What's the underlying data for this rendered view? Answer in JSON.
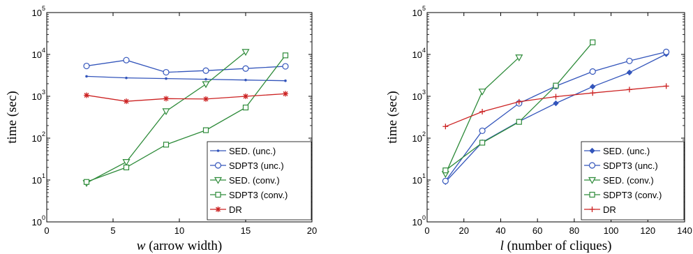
{
  "chart_data": [
    {
      "type": "line",
      "xlabel_var": "w",
      "xlabel_rest": " (arrow width)",
      "ylabel": "time (sec)",
      "xlim": [
        0,
        20
      ],
      "ylim_log10": [
        0,
        5
      ],
      "yscale": "log",
      "xticks": [
        "0",
        "5",
        "10",
        "15",
        "20"
      ],
      "legend_position": "bottom-right",
      "series": [
        {
          "name": "SED. (unc.)",
          "color": "#3355bb",
          "marker": "dot",
          "x": [
            3,
            6,
            9,
            12,
            15,
            18
          ],
          "y": [
            3000,
            2750,
            2650,
            2550,
            2450,
            2350
          ]
        },
        {
          "name": "SDPT3 (unc.)",
          "color": "#3355bb",
          "marker": "circle",
          "x": [
            3,
            6,
            9,
            12,
            15,
            18
          ],
          "y": [
            5300,
            7300,
            3750,
            4100,
            4600,
            5200
          ]
        },
        {
          "name": "SED. (conv.)",
          "color": "#2e8b3a",
          "marker": "triangle",
          "x": [
            3,
            6,
            9,
            12,
            15
          ],
          "y": [
            8.5,
            27,
            440,
            1950,
            11500
          ]
        },
        {
          "name": "SDPT3 (conv.)",
          "color": "#2e8b3a",
          "marker": "square",
          "x": [
            3,
            6,
            9,
            12,
            15,
            18
          ],
          "y": [
            9,
            20,
            70,
            155,
            540,
            9500
          ]
        },
        {
          "name": "DR",
          "color": "#cc2222",
          "marker": "star",
          "x": [
            3,
            6,
            9,
            12,
            15,
            18
          ],
          "y": [
            1060,
            760,
            880,
            860,
            1000,
            1150
          ]
        }
      ]
    },
    {
      "type": "line",
      "xlabel_var": "l",
      "xlabel_rest": " (number of cliques)",
      "ylabel": "time (sec)",
      "xlim": [
        0,
        140
      ],
      "ylim_log10": [
        0,
        5
      ],
      "yscale": "log",
      "xticks": [
        "0",
        "20",
        "40",
        "60",
        "80",
        "100",
        "120",
        "140"
      ],
      "legend_position": "bottom-right",
      "series": [
        {
          "name": "SED. (unc.)",
          "color": "#3355bb",
          "marker": "diamond",
          "x": [
            10,
            30,
            50,
            70,
            90,
            110,
            130
          ],
          "y": [
            9,
            80,
            250,
            680,
            1700,
            3700,
            10200
          ]
        },
        {
          "name": "SDPT3 (unc.)",
          "color": "#3355bb",
          "marker": "circle",
          "x": [
            10,
            30,
            50,
            70,
            90,
            110,
            130
          ],
          "y": [
            9.5,
            150,
            680,
            1750,
            3900,
            7000,
            11500
          ]
        },
        {
          "name": "SED. (conv.)",
          "color": "#2e8b3a",
          "marker": "triangle",
          "x": [
            10,
            30,
            50
          ],
          "y": [
            14,
            1300,
            8500
          ]
        },
        {
          "name": "SDPT3 (conv.)",
          "color": "#2e8b3a",
          "marker": "square",
          "x": [
            10,
            30,
            50,
            70,
            90
          ],
          "y": [
            17,
            78,
            245,
            1800,
            19500
          ]
        },
        {
          "name": "DR",
          "color": "#cc2222",
          "marker": "plus",
          "x": [
            10,
            30,
            50,
            70,
            90,
            110,
            130
          ],
          "y": [
            190,
            430,
            740,
            980,
            1200,
            1450,
            1750
          ]
        }
      ]
    }
  ]
}
